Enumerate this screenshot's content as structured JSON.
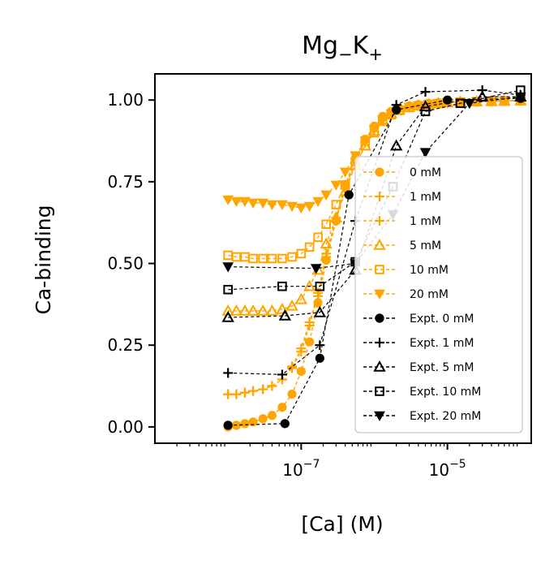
{
  "chart_data": {
    "type": "line",
    "title": "Mg",
    "title_sub": "−",
    "title_mid": "K",
    "title_sup": "+",
    "xlabel": "[Ca] (M)",
    "ylabel": "Ca-binding",
    "x_scale": "log",
    "xlim": [
      1e-09,
      0.00014
    ],
    "ylim": [
      -0.05,
      1.08
    ],
    "x_ticks": [
      {
        "value": 1e-07,
        "base": "10",
        "exp": "−7"
      },
      {
        "value": 1e-05,
        "base": "10",
        "exp": "−5"
      }
    ],
    "y_ticks": [
      {
        "value": 0.0,
        "label": "0.00"
      },
      {
        "value": 0.25,
        "label": "0.25"
      },
      {
        "value": 0.5,
        "label": "0.50"
      },
      {
        "value": 0.75,
        "label": "0.75"
      },
      {
        "value": 1.0,
        "label": "1.00"
      }
    ],
    "grid": false,
    "legend_position": "lower-right",
    "colors": {
      "model": "#FFA500",
      "experiment": "#000000"
    },
    "series": [
      {
        "name": "0 mM",
        "kind": "model",
        "marker": "circle",
        "x": [
          1e-08,
          1.3e-08,
          1.7e-08,
          2.2e-08,
          3e-08,
          4e-08,
          5.5e-08,
          7.5e-08,
          1e-07,
          1.3e-07,
          1.7e-07,
          2.2e-07,
          3e-07,
          4e-07,
          5.5e-07,
          7.5e-07,
          1e-06,
          1.3e-06,
          1.7e-06,
          2.2e-06,
          3e-06,
          4e-06,
          5.5e-06,
          7.5e-06,
          1e-05,
          1.5e-05,
          2.5e-05,
          4e-05,
          6e-05,
          0.0001
        ],
        "y": [
          0.0,
          0.005,
          0.01,
          0.015,
          0.025,
          0.035,
          0.06,
          0.1,
          0.17,
          0.26,
          0.38,
          0.51,
          0.63,
          0.74,
          0.82,
          0.88,
          0.92,
          0.95,
          0.965,
          0.975,
          0.982,
          0.986,
          0.99,
          0.992,
          0.994,
          0.995,
          0.996,
          0.997,
          0.998,
          0.998
        ]
      },
      {
        "name": "1 mM",
        "kind": "model",
        "marker": "plus",
        "x": [
          1e-08,
          1.3e-08,
          1.7e-08,
          2.2e-08,
          3e-08,
          4e-08,
          5.5e-08,
          7.5e-08,
          1e-07,
          1.3e-07,
          1.7e-07,
          2.2e-07,
          3e-07,
          4e-07,
          5.5e-07,
          7.5e-07,
          1e-06,
          1.3e-06,
          1.7e-06,
          2.2e-06,
          3e-06,
          4e-06,
          5.5e-06,
          7.5e-06,
          1e-05,
          1.5e-05,
          2.5e-05,
          4e-05,
          6e-05,
          0.0001
        ],
        "y": [
          0.1,
          0.1,
          0.105,
          0.11,
          0.115,
          0.125,
          0.145,
          0.18,
          0.23,
          0.31,
          0.4,
          0.52,
          0.63,
          0.73,
          0.81,
          0.87,
          0.915,
          0.945,
          0.96,
          0.972,
          0.98,
          0.985,
          0.988,
          0.99,
          0.993,
          0.995,
          0.996,
          0.997,
          0.998,
          0.998
        ]
      },
      {
        "name": "1 mM",
        "kind": "model",
        "marker": "plus",
        "x": [
          1e-08,
          1.3e-08,
          1.7e-08,
          2.2e-08,
          3e-08,
          4e-08,
          5.5e-08,
          7.5e-08,
          1e-07,
          1.3e-07,
          1.7e-07,
          2.2e-07,
          3e-07,
          4e-07,
          5.5e-07,
          7.5e-07,
          1e-06,
          1.3e-06,
          1.7e-06,
          2.2e-06,
          3e-06,
          4e-06,
          5.5e-06,
          7.5e-06,
          1e-05,
          1.5e-05,
          2.5e-05,
          4e-05,
          6e-05,
          0.0001
        ],
        "y": [
          0.1,
          0.1,
          0.105,
          0.11,
          0.115,
          0.125,
          0.145,
          0.185,
          0.24,
          0.32,
          0.41,
          0.53,
          0.64,
          0.74,
          0.82,
          0.875,
          0.915,
          0.945,
          0.96,
          0.972,
          0.98,
          0.985,
          0.988,
          0.99,
          0.993,
          0.995,
          0.996,
          0.997,
          0.998,
          0.998
        ]
      },
      {
        "name": "5 mM",
        "kind": "model",
        "marker": "triangle-up",
        "x": [
          1e-08,
          1.3e-08,
          1.7e-08,
          2.2e-08,
          3e-08,
          4e-08,
          5.5e-08,
          7.5e-08,
          1e-07,
          1.3e-07,
          1.7e-07,
          2.2e-07,
          3e-07,
          4e-07,
          5.5e-07,
          7.5e-07,
          1e-06,
          1.3e-06,
          1.7e-06,
          2.2e-06,
          3e-06,
          4e-06,
          5.5e-06,
          7.5e-06,
          1e-05,
          1.5e-05,
          2.5e-05,
          4e-05,
          6e-05,
          0.0001
        ],
        "y": [
          0.355,
          0.355,
          0.355,
          0.355,
          0.355,
          0.355,
          0.36,
          0.37,
          0.39,
          0.43,
          0.48,
          0.56,
          0.64,
          0.72,
          0.8,
          0.86,
          0.905,
          0.94,
          0.958,
          0.97,
          0.978,
          0.983,
          0.987,
          0.99,
          0.992,
          0.994,
          0.995,
          0.996,
          0.997,
          0.998
        ]
      },
      {
        "name": "10 mM",
        "kind": "model",
        "marker": "square",
        "x": [
          1e-08,
          1.3e-08,
          1.7e-08,
          2.2e-08,
          3e-08,
          4e-08,
          5.5e-08,
          7.5e-08,
          1e-07,
          1.3e-07,
          1.7e-07,
          2.2e-07,
          3e-07,
          4e-07,
          5.5e-07,
          7.5e-07,
          1e-06,
          1.3e-06,
          1.7e-06,
          2.2e-06,
          3e-06,
          4e-06,
          5.5e-06,
          7.5e-06,
          1e-05,
          1.5e-05,
          2.5e-05,
          4e-05,
          6e-05,
          0.0001
        ],
        "y": [
          0.525,
          0.52,
          0.52,
          0.515,
          0.515,
          0.515,
          0.515,
          0.52,
          0.53,
          0.55,
          0.58,
          0.62,
          0.68,
          0.74,
          0.8,
          0.86,
          0.9,
          0.935,
          0.955,
          0.968,
          0.977,
          0.982,
          0.986,
          0.989,
          0.992,
          0.994,
          0.995,
          0.996,
          0.997,
          0.998
        ]
      },
      {
        "name": "20 mM",
        "kind": "model",
        "marker": "triangle-down",
        "x": [
          1e-08,
          1.3e-08,
          1.7e-08,
          2.2e-08,
          3e-08,
          4e-08,
          5.5e-08,
          7.5e-08,
          1e-07,
          1.3e-07,
          1.7e-07,
          2.2e-07,
          3e-07,
          4e-07,
          5.5e-07,
          7.5e-07,
          1e-06,
          1.3e-06,
          1.7e-06,
          2.2e-06,
          3e-06,
          4e-06,
          5.5e-06,
          7.5e-06,
          1e-05,
          1.5e-05,
          2.5e-05,
          4e-05,
          6e-05,
          0.0001
        ],
        "y": [
          0.695,
          0.69,
          0.69,
          0.685,
          0.685,
          0.68,
          0.68,
          0.675,
          0.67,
          0.675,
          0.69,
          0.71,
          0.74,
          0.78,
          0.83,
          0.875,
          0.91,
          0.94,
          0.958,
          0.97,
          0.978,
          0.983,
          0.987,
          0.99,
          0.992,
          0.994,
          0.995,
          0.996,
          0.997,
          0.998
        ]
      },
      {
        "name": "Expt. 0 mM",
        "kind": "experiment",
        "marker": "circle",
        "x": [
          1e-08,
          6e-08,
          1.8e-07,
          4.5e-07,
          2e-06,
          1e-05,
          0.0001
        ],
        "y": [
          0.005,
          0.01,
          0.21,
          0.71,
          0.97,
          1.0,
          1.005
        ]
      },
      {
        "name": "Expt. 1 mM",
        "kind": "experiment",
        "marker": "plus",
        "x": [
          1e-08,
          5.5e-08,
          1.8e-07,
          5.5e-07,
          2e-06,
          5e-06,
          3e-05,
          0.0001
        ],
        "y": [
          0.165,
          0.16,
          0.25,
          0.63,
          0.985,
          1.025,
          1.03,
          1.015
        ]
      },
      {
        "name": "Expt. 5 mM",
        "kind": "experiment",
        "marker": "triangle-up",
        "x": [
          1e-08,
          6e-08,
          1.8e-07,
          5.5e-07,
          2e-06,
          5e-06,
          3e-05,
          0.0001
        ],
        "y": [
          0.335,
          0.34,
          0.35,
          0.48,
          0.86,
          0.98,
          1.01,
          1.01
        ]
      },
      {
        "name": "Expt. 10 mM",
        "kind": "experiment",
        "marker": "square",
        "x": [
          1e-08,
          5.5e-08,
          1.8e-07,
          5.5e-07,
          1.8e-06,
          5e-06,
          1.5e-05,
          0.0001
        ],
        "y": [
          0.42,
          0.43,
          0.43,
          0.505,
          0.735,
          0.965,
          0.99,
          1.03
        ]
      },
      {
        "name": "Expt. 20 mM",
        "kind": "experiment",
        "marker": "triangle-down",
        "x": [
          1e-08,
          1.6e-07,
          5.5e-07,
          1.8e-06,
          5e-06,
          2e-05,
          0.0001
        ],
        "y": [
          0.49,
          0.485,
          0.5,
          0.65,
          0.84,
          0.99,
          1.01
        ]
      }
    ]
  }
}
